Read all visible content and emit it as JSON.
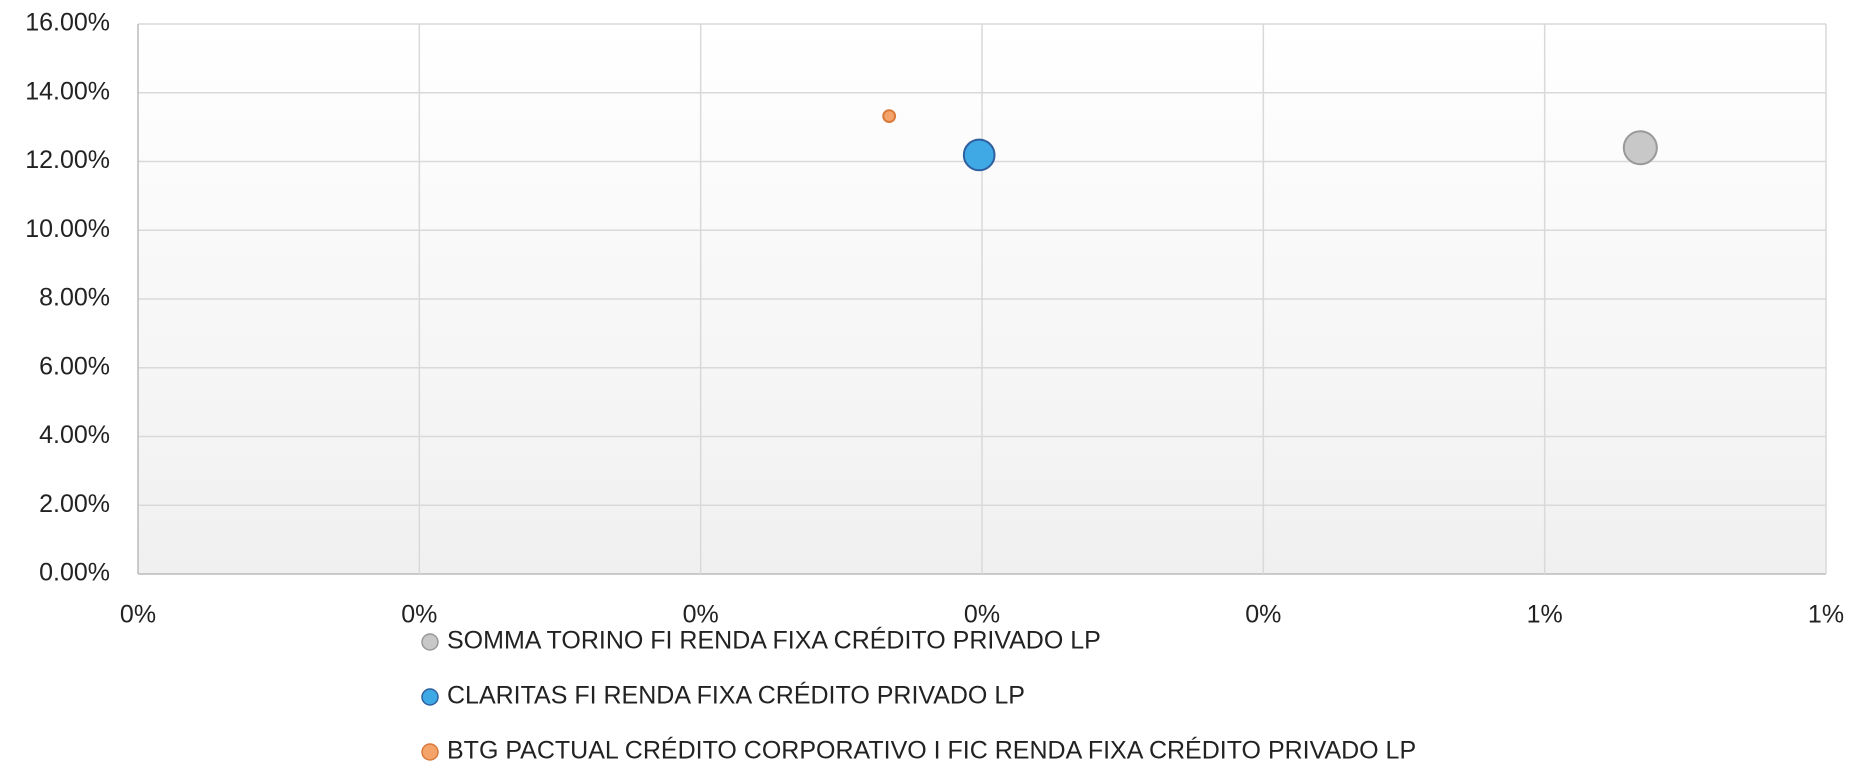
{
  "chart_data": {
    "type": "bubble",
    "series": [
      {
        "name": "SOMMA TORINO FI RENDA FIXA CRÉDITO PRIVADO LP",
        "color": "#c8c8c8",
        "stroke": "#999999",
        "x": [
          0.534
        ],
        "values": [
          12.4
        ],
        "sizes": [
          14
        ]
      },
      {
        "name": "CLARITAS FI RENDA FIXA CRÉDITO PRIVADO LP",
        "color": "#3fa9e6",
        "stroke": "#2f5f9e",
        "x": [
          0.299
        ],
        "values": [
          12.19
        ],
        "sizes": [
          13
        ]
      },
      {
        "name": "BTG PACTUAL CRÉDITO CORPORATIVO I FIC RENDA FIXA CRÉDITO PRIVADO LP",
        "color": "#f4a46a",
        "stroke": "#d97a3a",
        "x": [
          0.267
        ],
        "values": [
          13.32
        ],
        "sizes": [
          5
        ]
      }
    ],
    "xlim": [
      0,
      0.6
    ],
    "xticks": [
      {
        "value": 0,
        "label": "0%"
      },
      {
        "value": 0.1,
        "label": "0%"
      },
      {
        "value": 0.2,
        "label": "0%"
      },
      {
        "value": 0.3,
        "label": "0%"
      },
      {
        "value": 0.4,
        "label": "0%"
      },
      {
        "value": 0.5,
        "label": "1%"
      },
      {
        "value": 0.6,
        "label": "1%"
      }
    ],
    "ylim": [
      0,
      16
    ],
    "yticks": [
      {
        "value": 0,
        "label": "0.00%"
      },
      {
        "value": 2,
        "label": "2.00%"
      },
      {
        "value": 4,
        "label": "4.00%"
      },
      {
        "value": 6,
        "label": "6.00%"
      },
      {
        "value": 8,
        "label": "8.00%"
      },
      {
        "value": 10,
        "label": "10.00%"
      },
      {
        "value": 12,
        "label": "12.00%"
      },
      {
        "value": 14,
        "label": "14.00%"
      },
      {
        "value": 16,
        "label": "16.00%"
      }
    ],
    "grid": true
  }
}
